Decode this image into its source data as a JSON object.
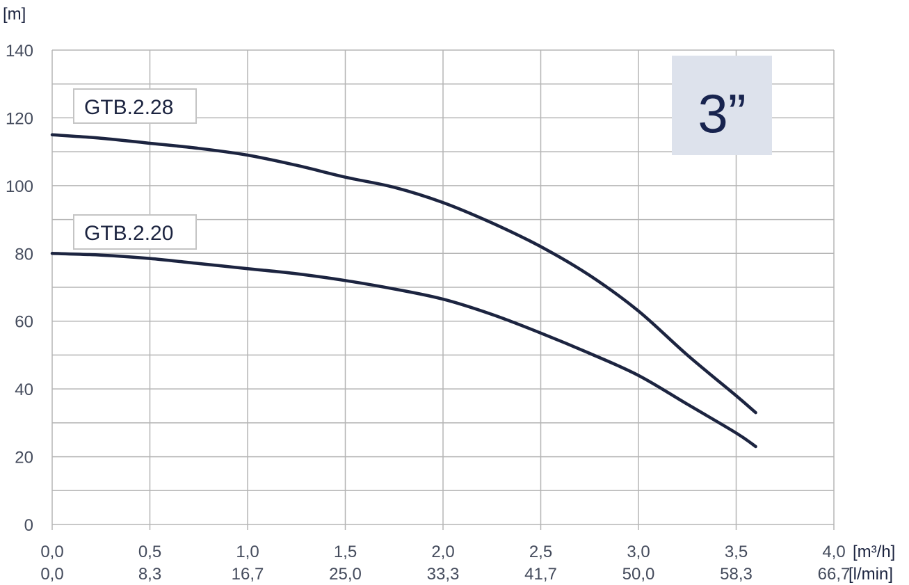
{
  "chart_data": {
    "type": "line",
    "ylabel": "[m]",
    "ylim": [
      0,
      140
    ],
    "yticks": [
      0,
      20,
      40,
      60,
      80,
      100,
      120,
      140
    ],
    "xlim": [
      0,
      4.0
    ],
    "xticks": [
      "0,0",
      "0,5",
      "1,0",
      "1,5",
      "2,0",
      "2,5",
      "3,0",
      "3,5",
      "4,0"
    ],
    "xticks_secondary": [
      "0,0",
      "8,3",
      "16,7",
      "25,0",
      "33,3",
      "41,7",
      "50,0",
      "58,3",
      "66,7"
    ],
    "xunit_primary": "[m³/h]",
    "xunit_secondary": "[l/min]",
    "grid": true,
    "badge": "3”",
    "series": [
      {
        "name": "GTB.2.28",
        "x": [
          0,
          0.25,
          0.5,
          0.75,
          1.0,
          1.25,
          1.5,
          1.75,
          2.0,
          2.25,
          2.5,
          2.75,
          3.0,
          3.25,
          3.5,
          3.6
        ],
        "y": [
          115,
          114,
          112.5,
          111,
          109,
          106,
          102.5,
          99.5,
          95,
          89,
          82,
          73.5,
          63,
          50,
          38,
          33
        ]
      },
      {
        "name": "GTB.2.20",
        "x": [
          0,
          0.25,
          0.5,
          0.75,
          1.0,
          1.25,
          1.5,
          1.75,
          2.0,
          2.25,
          2.5,
          2.75,
          3.0,
          3.25,
          3.5,
          3.6
        ],
        "y": [
          80,
          79.5,
          78.5,
          77,
          75.5,
          74,
          72,
          69.5,
          66.5,
          62,
          56.5,
          50.5,
          44,
          35.5,
          27,
          23
        ]
      }
    ],
    "colors": {
      "line": "#1c2440",
      "grid": "#b5b5b5",
      "badge_bg": "#dde2ec",
      "label_border": "#c4c4c4"
    }
  }
}
